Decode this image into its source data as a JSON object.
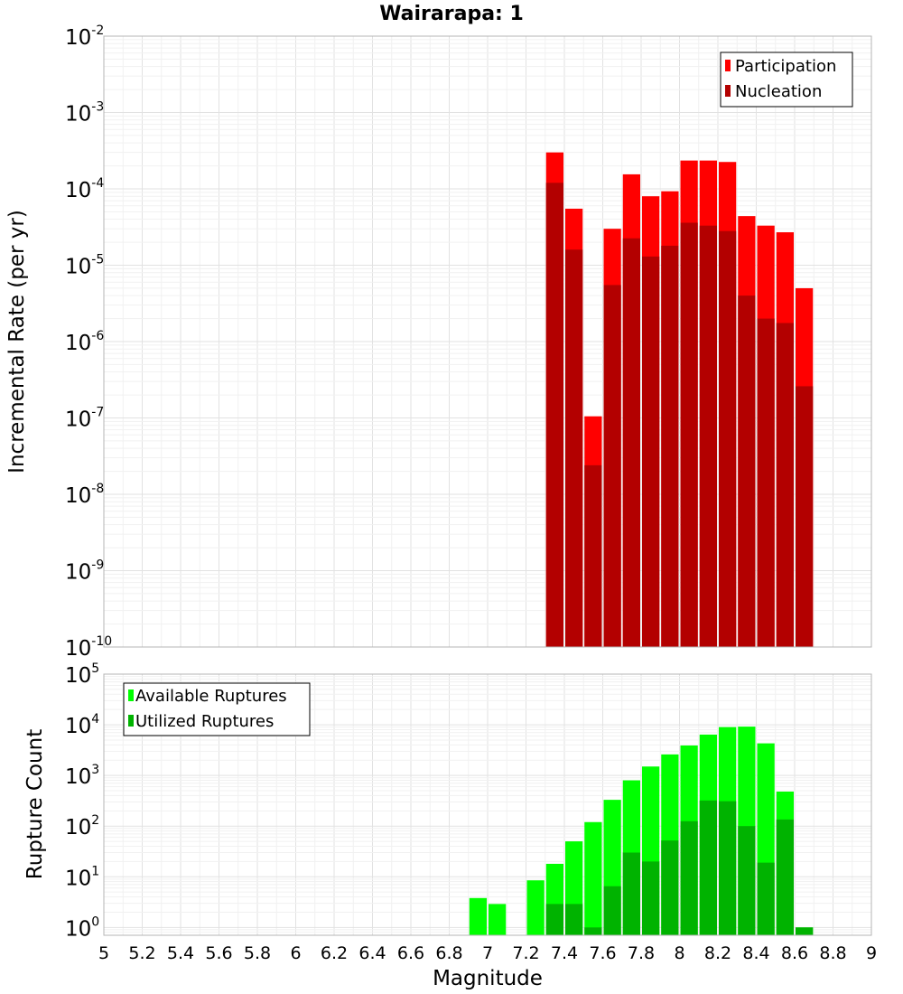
{
  "chart_data": [
    {
      "type": "bar",
      "title": "Wairarapa: 1",
      "xlabel": "",
      "ylabel": "Incremental Rate (per yr)",
      "yscale": "log",
      "xlim": [
        5,
        9
      ],
      "ylim": [
        1e-10,
        0.01
      ],
      "y_tick_exponents": [
        -10,
        -9,
        -8,
        -7,
        -6,
        -5,
        -4,
        -3,
        -2
      ],
      "legend_position": "top-right",
      "grid": true,
      "x": [
        7.35,
        7.45,
        7.55,
        7.65,
        7.75,
        7.85,
        7.95,
        8.05,
        8.15,
        8.25,
        8.35,
        8.45,
        8.55,
        8.65
      ],
      "series": [
        {
          "name": "Participation",
          "color": "#ff0000",
          "values": [
            0.0003,
            5.5e-05,
            1.05e-07,
            3e-05,
            0.000155,
            8e-05,
            9.3e-05,
            0.000235,
            0.000235,
            0.000225,
            4.4e-05,
            3.3e-05,
            2.7e-05,
            5e-06
          ]
        },
        {
          "name": "Nucleation",
          "color": "#b30000",
          "values": [
            0.00012,
            1.6e-05,
            2.4e-08,
            5.5e-06,
            2.25e-05,
            1.3e-05,
            1.8e-05,
            3.6e-05,
            3.3e-05,
            2.8e-05,
            4e-06,
            2e-06,
            1.75e-06,
            2.6e-07
          ]
        }
      ]
    },
    {
      "type": "bar",
      "title": "",
      "xlabel": "Magnitude",
      "ylabel": "Rupture Count",
      "yscale": "log",
      "xlim": [
        5,
        9
      ],
      "ylim": [
        0.7,
        100000.0
      ],
      "y_tick_exponents": [
        0,
        1,
        2,
        3,
        4,
        5
      ],
      "x_ticks": [
        "5",
        "5.2",
        "5.4",
        "5.6",
        "5.8",
        "6",
        "6.2",
        "6.4",
        "6.6",
        "6.8",
        "7",
        "7.2",
        "7.4",
        "7.6",
        "7.8",
        "8",
        "8.2",
        "8.4",
        "8.6",
        "8.8",
        "9"
      ],
      "legend_position": "top-left",
      "grid": true,
      "x": [
        6.95,
        7.05,
        7.25,
        7.35,
        7.45,
        7.55,
        7.65,
        7.75,
        7.85,
        7.95,
        8.05,
        8.15,
        8.25,
        8.35,
        8.45,
        8.55,
        8.65
      ],
      "series": [
        {
          "name": "Available Ruptures",
          "color": "#00ff00",
          "values": [
            3.8,
            2.9,
            8.5,
            18,
            50,
            120,
            330,
            800,
            1500,
            2600,
            3900,
            6400,
            9000,
            9200,
            4300,
            480,
            1.0
          ]
        },
        {
          "name": "Utilized Ruptures",
          "color": "#00b300",
          "values": [
            null,
            null,
            null,
            2.9,
            2.9,
            1.0,
            6.5,
            30,
            20,
            52,
            125,
            320,
            310,
            100,
            19,
            135,
            1.0
          ]
        }
      ]
    }
  ]
}
